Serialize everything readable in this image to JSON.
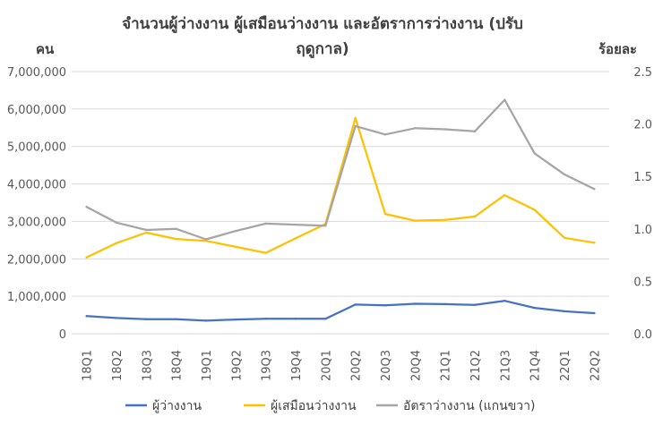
{
  "chart_data": {
    "type": "line",
    "title_line1": "จำนวนผู้ว่างงาน ผู้เสมือนว่างงาน และอัตราการว่างงาน (ปรับ",
    "title_line2": "ฤดูกาล)",
    "ylabel_left": "คน",
    "ylabel_right": "ร้อยละ",
    "ylim_left": [
      0,
      7000000
    ],
    "ylim_right": [
      0.0,
      2.5
    ],
    "yticks_left": [
      "0",
      "1,000,000",
      "2,000,000",
      "3,000,000",
      "4,000,000",
      "5,000,000",
      "6,000,000",
      "7,000,000"
    ],
    "yticks_right": [
      "0.0",
      "0.5",
      "1.0",
      "1.5",
      "2.0",
      "2.5"
    ],
    "categories": [
      "18Q1",
      "18Q2",
      "18Q3",
      "18Q4",
      "19Q1",
      "19Q2",
      "19Q3",
      "19Q4",
      "20Q1",
      "20Q2",
      "20Q3",
      "20Q4",
      "21Q1",
      "21Q2",
      "21Q3",
      "21Q4",
      "22Q1",
      "22Q2"
    ],
    "grid": true,
    "legend_position": "bottom",
    "series": [
      {
        "name": "ผู้ว่างงาน",
        "axis": "left",
        "color": "#4472C4",
        "values": [
          470000,
          420000,
          390000,
          390000,
          350000,
          380000,
          400000,
          400000,
          400000,
          780000,
          760000,
          800000,
          790000,
          770000,
          880000,
          690000,
          600000,
          550000
        ]
      },
      {
        "name": "ผู้เสมือนว่างงาน",
        "axis": "left",
        "color": "#FFC000",
        "values": [
          2040000,
          2420000,
          2700000,
          2530000,
          2480000,
          2320000,
          2160000,
          2550000,
          2930000,
          5760000,
          3200000,
          3020000,
          3040000,
          3130000,
          3700000,
          3310000,
          2560000,
          2430000
        ]
      },
      {
        "name": "อัตราว่างงาน (แกนขวา)",
        "axis": "right",
        "color": "#A5A5A5",
        "values": [
          1.21,
          1.06,
          0.99,
          1.0,
          0.9,
          0.98,
          1.05,
          1.04,
          1.03,
          1.98,
          1.9,
          1.96,
          1.95,
          1.93,
          2.23,
          1.72,
          1.52,
          1.38
        ]
      }
    ]
  }
}
